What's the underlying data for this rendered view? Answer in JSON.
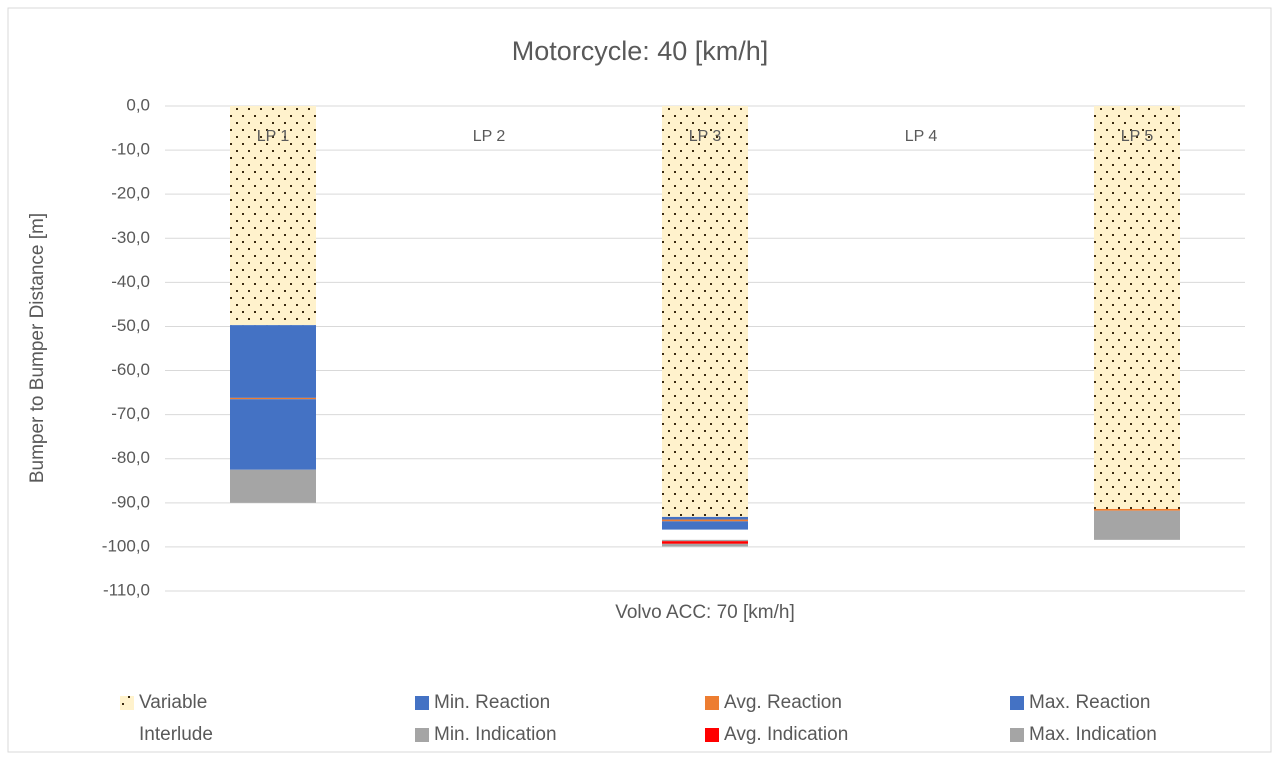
{
  "chart_data": {
    "type": "stacked_bar",
    "title": "Motorcycle: 40 [km/h]",
    "x_label": "Volvo ACC: 70 [km/h]",
    "y_label": "Bumper to Bumper Distance [m]",
    "categories": [
      "LP 1",
      "LP 2",
      "LP 3",
      "LP 4",
      "LP 5"
    ],
    "series": [
      {
        "name": "Variable",
        "color": "#fff2cc",
        "values": [
          -49.7,
          null,
          -93.2,
          null,
          -91.4
        ]
      },
      {
        "name": "Min. Reaction",
        "color": "#4472c4",
        "values": [
          -16.5,
          null,
          -0.6,
          null,
          0
        ]
      },
      {
        "name": "Avg. Reaction",
        "color": "#ed7d31",
        "values": [
          -0.3,
          null,
          -0.4,
          null,
          -0.4
        ]
      },
      {
        "name": "Max. Reaction",
        "color": "#4472c4",
        "values": [
          -16.0,
          null,
          -1.9,
          null,
          0
        ]
      },
      {
        "name": "Interlude",
        "color": "#ffffff",
        "values": [
          0,
          null,
          -2.3,
          null,
          0
        ]
      },
      {
        "name": "Min. Indication",
        "color": "#a5a5a5",
        "values": [
          -7.5,
          null,
          -0.3,
          null,
          -6.6
        ]
      },
      {
        "name": "Avg. Indication",
        "color": "#ff0000",
        "values": [
          0,
          null,
          -0.6,
          null,
          0
        ]
      },
      {
        "name": "Max. Indication",
        "color": "#a5a5a5",
        "values": [
          0,
          null,
          -0.6,
          null,
          0
        ]
      }
    ],
    "ylim": [
      -110,
      0
    ],
    "yticks": [
      {
        "value": 0,
        "label": "0,0"
      },
      {
        "value": -10,
        "label": "-10,0"
      },
      {
        "value": -20,
        "label": "-20,0"
      },
      {
        "value": -30,
        "label": "-30,0"
      },
      {
        "value": -40,
        "label": "-40,0"
      },
      {
        "value": -50,
        "label": "-50,0"
      },
      {
        "value": -60,
        "label": "-60,0"
      },
      {
        "value": -70,
        "label": "-70,0"
      },
      {
        "value": -80,
        "label": "-80,0"
      },
      {
        "value": -90,
        "label": "-90,0"
      },
      {
        "value": -100,
        "label": "-100,0"
      },
      {
        "value": -110,
        "label": "-110,0"
      }
    ],
    "grid": true
  }
}
